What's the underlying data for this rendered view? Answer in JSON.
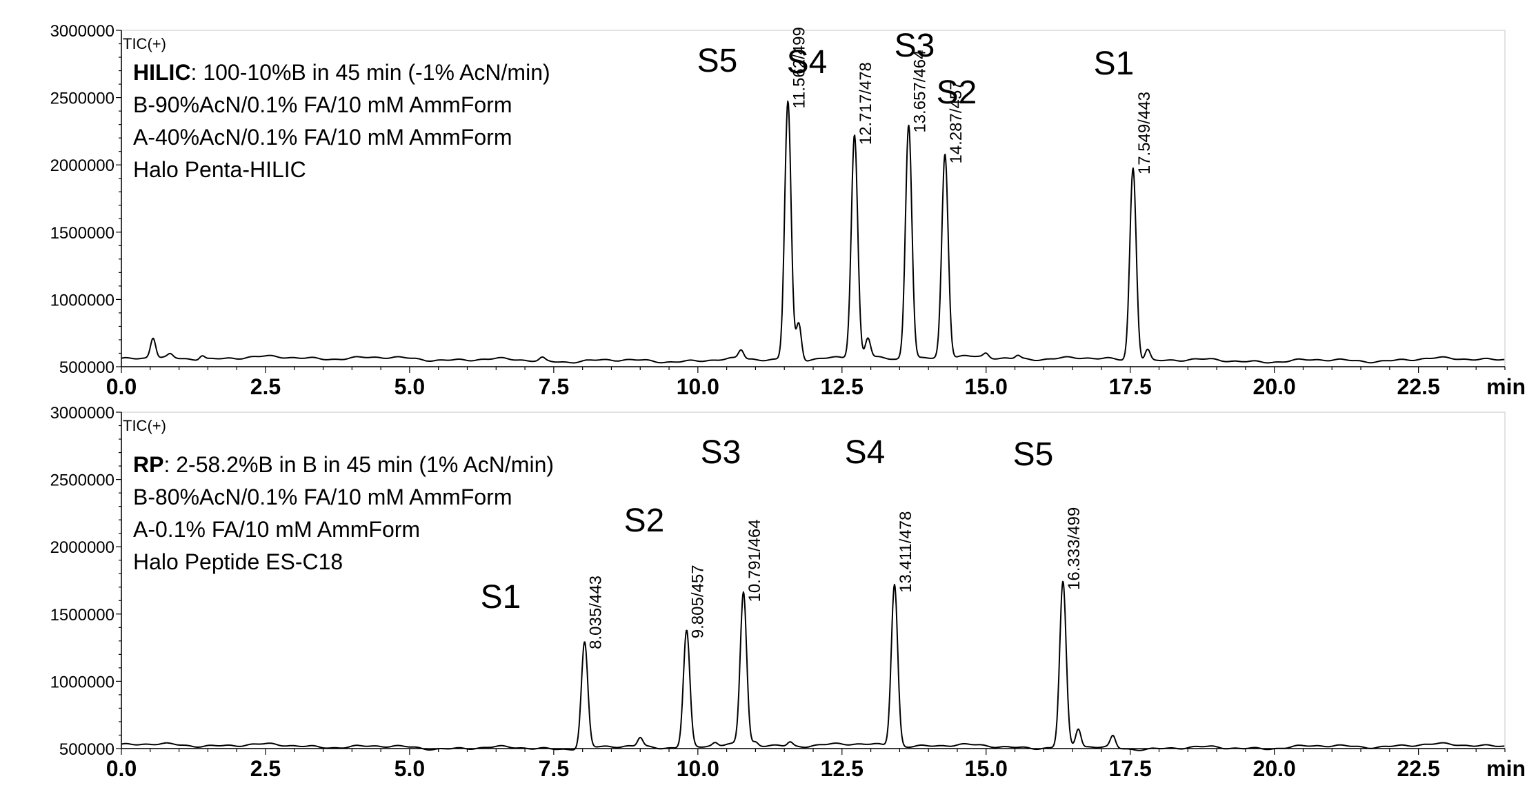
{
  "chart_data": [
    {
      "type": "line",
      "detector": "TIC(+)",
      "xunit": "min",
      "xlim": [
        0,
        24
      ],
      "ylim": [
        500000,
        3000000
      ],
      "x_ticks": [
        "0.0",
        "2.5",
        "5.0",
        "7.5",
        "10.0",
        "12.5",
        "15.0",
        "17.5",
        "20.0",
        "22.5"
      ],
      "y_ticks": [
        "500000",
        "1000000",
        "1500000",
        "2000000",
        "2500000",
        "3000000"
      ],
      "info_lines": [
        {
          "bold": "HILIC",
          "text": ": 100-10%B in 45 min (-1% AcN/min)"
        },
        {
          "bold": "",
          "text": "B-90%AcN/0.1% FA/10 mM AmmForm"
        },
        {
          "bold": "",
          "text": "A-40%AcN/0.1% FA/10 mM AmmForm"
        },
        {
          "bold": "",
          "text": "Halo Penta-HILIC"
        }
      ],
      "baseline": 555000,
      "peaks": [
        {
          "rt": 11.562,
          "label": "11.562/499",
          "compound": "S5",
          "height": 2480000
        },
        {
          "rt": 12.717,
          "label": "12.717/478",
          "compound": "S4",
          "height": 2210000
        },
        {
          "rt": 13.657,
          "label": "13.657/464",
          "compound": "S3",
          "height": 2300000
        },
        {
          "rt": 14.287,
          "label": "14.287/457",
          "compound": "S2",
          "height": 2070000
        },
        {
          "rt": 17.549,
          "label": "17.549/443",
          "compound": "S1",
          "height": 1990000
        }
      ],
      "minor_peaks": [
        {
          "rt": 0.55,
          "height": 705000
        },
        {
          "rt": 0.85,
          "height": 580000
        },
        {
          "rt": 1.4,
          "height": 585000
        },
        {
          "rt": 7.3,
          "height": 578000
        },
        {
          "rt": 10.75,
          "height": 620000
        },
        {
          "rt": 11.75,
          "height": 830000
        },
        {
          "rt": 12.95,
          "height": 700000
        },
        {
          "rt": 15.0,
          "height": 585000
        },
        {
          "rt": 15.55,
          "height": 580000
        },
        {
          "rt": 17.8,
          "height": 640000
        }
      ]
    },
    {
      "type": "line",
      "detector": "TIC(+)",
      "xunit": "min",
      "xlim": [
        0,
        24
      ],
      "ylim": [
        500000,
        3000000
      ],
      "x_ticks": [
        "0.0",
        "2.5",
        "5.0",
        "7.5",
        "10.0",
        "12.5",
        "15.0",
        "17.5",
        "20.0",
        "22.5"
      ],
      "y_ticks": [
        "500000",
        "1000000",
        "1500000",
        "2000000",
        "2500000",
        "3000000"
      ],
      "info_lines": [
        {
          "bold": "RP",
          "text": ": 2-58.2%B in B in 45 min (1% AcN/min)"
        },
        {
          "bold": "",
          "text": "B-80%AcN/0.1% FA/10 mM AmmForm"
        },
        {
          "bold": "",
          "text": "A-0.1% FA/10 mM AmmForm"
        },
        {
          "bold": "",
          "text": "Halo Peptide ES-C18"
        }
      ],
      "baseline": 515000,
      "peaks": [
        {
          "rt": 8.035,
          "label": "8.035/443",
          "compound": "S1",
          "height": 1300000
        },
        {
          "rt": 9.805,
          "label": "9.805/457",
          "compound": "S2",
          "height": 1380000
        },
        {
          "rt": 10.791,
          "label": "10.791/464",
          "compound": "S3",
          "height": 1650000
        },
        {
          "rt": 13.411,
          "label": "13.411/478",
          "compound": "S4",
          "height": 1720000
        },
        {
          "rt": 16.333,
          "label": "16.333/499",
          "compound": "S5",
          "height": 1740000
        }
      ],
      "minor_peaks": [
        {
          "rt": 9.0,
          "height": 580000
        },
        {
          "rt": 10.3,
          "height": 540000
        },
        {
          "rt": 11.0,
          "height": 540000
        },
        {
          "rt": 11.6,
          "height": 545000
        },
        {
          "rt": 16.6,
          "height": 650000
        },
        {
          "rt": 17.2,
          "height": 600000
        }
      ]
    }
  ]
}
